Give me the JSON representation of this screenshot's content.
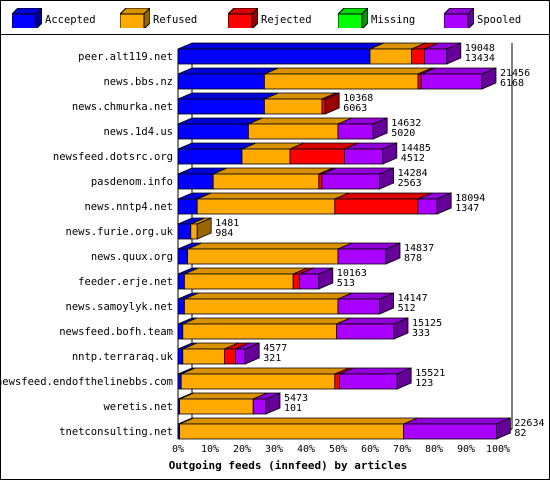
{
  "chart_data": {
    "type": "bar",
    "stacked": true,
    "orientation": "horizontal",
    "normalized_percent": true,
    "title": "",
    "xlabel": "Outgoing feeds (innfeed) by articles",
    "ylabel": "",
    "xlim": [
      0,
      100
    ],
    "x_ticks": [
      "0%",
      "10%",
      "20%",
      "30%",
      "40%",
      "50%",
      "60%",
      "70%",
      "80%",
      "90%",
      "100%"
    ],
    "legend_position": "top",
    "series": [
      {
        "name": "Accepted",
        "color": "#0000ff"
      },
      {
        "name": "Refused",
        "color": "#ffaa00"
      },
      {
        "name": "Rejected",
        "color": "#ff0000"
      },
      {
        "name": "Missing",
        "color": "#00ff00"
      },
      {
        "name": "Spooled",
        "color": "#aa00ff"
      }
    ],
    "categories": [
      {
        "name": "peer.alt119.net",
        "values": [
          60,
          13,
          4,
          0,
          7
        ],
        "total_label": "19048",
        "second_label": "13434"
      },
      {
        "name": "news.bbs.nz",
        "values": [
          27,
          48,
          1,
          0,
          19
        ],
        "total_label": "21456",
        "second_label": "6168"
      },
      {
        "name": "news.chmurka.net",
        "values": [
          27,
          18,
          1,
          0,
          0
        ],
        "total_label": "10368",
        "second_label": "6063"
      },
      {
        "name": "news.1d4.us",
        "values": [
          22,
          28,
          0,
          0,
          11
        ],
        "total_label": "14632",
        "second_label": "5020"
      },
      {
        "name": "newsfeed.dotsrc.org",
        "values": [
          20,
          15,
          17,
          0,
          12
        ],
        "total_label": "14485",
        "second_label": "4512"
      },
      {
        "name": "pasdenom.info",
        "values": [
          11,
          33,
          1,
          0,
          18
        ],
        "total_label": "14284",
        "second_label": "2563"
      },
      {
        "name": "news.nntp4.net",
        "values": [
          6,
          43,
          26,
          0,
          6
        ],
        "total_label": "18094",
        "second_label": "1347"
      },
      {
        "name": "news.furie.org.uk",
        "values": [
          4,
          2,
          0,
          0,
          0
        ],
        "total_label": "1481",
        "second_label": "984"
      },
      {
        "name": "news.quux.org",
        "values": [
          3,
          47,
          0,
          0,
          15
        ],
        "total_label": "14837",
        "second_label": "878"
      },
      {
        "name": "feeder.erje.net",
        "values": [
          2,
          34,
          2,
          0,
          6
        ],
        "total_label": "10163",
        "second_label": "513"
      },
      {
        "name": "news.samoylyk.net",
        "values": [
          2,
          48,
          0,
          0,
          13
        ],
        "total_label": "14147",
        "second_label": "512"
      },
      {
        "name": "newsfeed.bofh.team",
        "values": [
          1.5,
          48,
          0,
          0,
          18
        ],
        "total_label": "15125",
        "second_label": "333"
      },
      {
        "name": "nntp.terraraq.uk",
        "values": [
          1.5,
          13,
          3.5,
          0,
          3
        ],
        "total_label": "4577",
        "second_label": "321"
      },
      {
        "name": "newsfeed.endofthelinebbs.com",
        "values": [
          1,
          48,
          1.5,
          0,
          18
        ],
        "total_label": "15521",
        "second_label": "123"
      },
      {
        "name": "weretis.net",
        "values": [
          0.5,
          23,
          0,
          0,
          4
        ],
        "total_label": "5473",
        "second_label": "101"
      },
      {
        "name": "tnetconsulting.net",
        "values": [
          0.5,
          70,
          0,
          0,
          29
        ],
        "total_label": "22634",
        "second_label": "82"
      }
    ]
  }
}
